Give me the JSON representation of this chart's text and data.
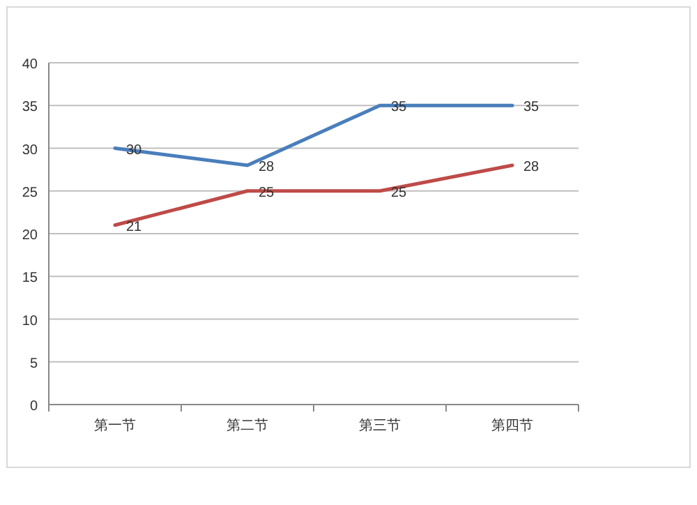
{
  "chart_data": {
    "type": "line",
    "categories": [
      "第一节",
      "第二节",
      "第三节",
      "第四节"
    ],
    "series": [
      {
        "color": "#4a7ebb",
        "values": [
          30,
          28,
          35,
          35
        ]
      },
      {
        "color": "#be4b48",
        "values": [
          21,
          25,
          25,
          28
        ]
      }
    ],
    "ylim": [
      0,
      40
    ],
    "yticks": [
      0,
      5,
      10,
      15,
      20,
      25,
      30,
      35,
      40
    ],
    "grid": "y",
    "data_labels": true,
    "marker": "none",
    "line_style": "solid"
  }
}
